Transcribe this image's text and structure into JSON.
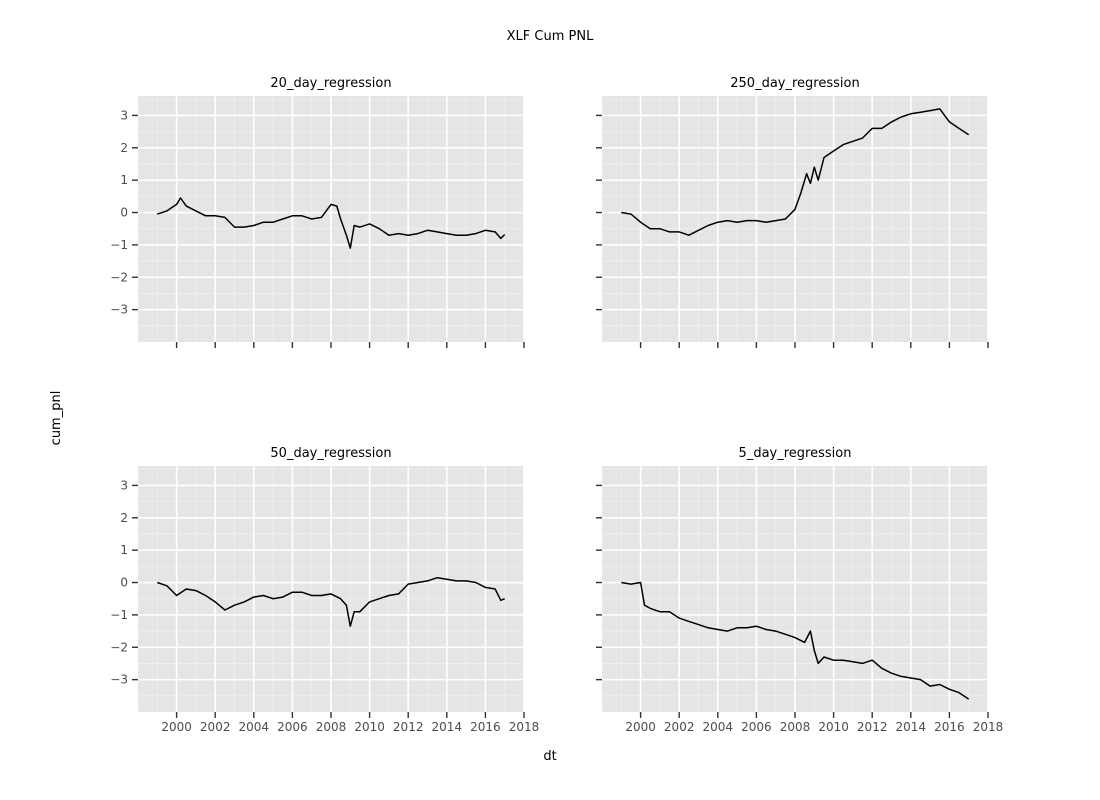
{
  "chart_data": {
    "type": "line",
    "title": "XLF Cum PNL",
    "xlabel": "dt",
    "ylabel": "cum_pnl",
    "xlim": [
      1998.0,
      2018.0
    ],
    "ylim": [
      -4.0,
      3.6
    ],
    "x_ticks": [
      2000,
      2002,
      2004,
      2006,
      2008,
      2010,
      2012,
      2014,
      2016,
      2018
    ],
    "y_ticks": [
      -3,
      -2,
      -1,
      0,
      1,
      2,
      3
    ],
    "grid": true,
    "line_color": "#000000",
    "panel_background": "#e5e5e5",
    "grid_color": "#ffffff",
    "panels": [
      {
        "label": "20_day_regression",
        "x": [
          1999.0,
          1999.5,
          2000.0,
          2000.2,
          2000.5,
          2001.0,
          2001.5,
          2002.0,
          2002.5,
          2003.0,
          2003.5,
          2004.0,
          2004.5,
          2005.0,
          2005.5,
          2006.0,
          2006.5,
          2007.0,
          2007.5,
          2008.0,
          2008.3,
          2008.5,
          2008.8,
          2009.0,
          2009.2,
          2009.5,
          2010.0,
          2010.5,
          2011.0,
          2011.5,
          2012.0,
          2012.5,
          2013.0,
          2013.5,
          2014.0,
          2014.5,
          2015.0,
          2015.5,
          2016.0,
          2016.5,
          2016.8,
          2017.0
        ],
        "y": [
          -0.05,
          0.05,
          0.25,
          0.45,
          0.2,
          0.05,
          -0.1,
          -0.1,
          -0.15,
          -0.45,
          -0.45,
          -0.4,
          -0.3,
          -0.3,
          -0.2,
          -0.1,
          -0.1,
          -0.2,
          -0.15,
          0.25,
          0.2,
          -0.2,
          -0.7,
          -1.1,
          -0.4,
          -0.45,
          -0.35,
          -0.5,
          -0.7,
          -0.65,
          -0.7,
          -0.65,
          -0.55,
          -0.6,
          -0.65,
          -0.7,
          -0.7,
          -0.65,
          -0.55,
          -0.6,
          -0.8,
          -0.68
        ]
      },
      {
        "label": "250_day_regression",
        "x": [
          1999.0,
          1999.5,
          2000.0,
          2000.5,
          2001.0,
          2001.5,
          2002.0,
          2002.5,
          2003.0,
          2003.5,
          2004.0,
          2004.5,
          2005.0,
          2005.5,
          2006.0,
          2006.5,
          2007.0,
          2007.5,
          2008.0,
          2008.3,
          2008.6,
          2008.8,
          2009.0,
          2009.2,
          2009.5,
          2010.0,
          2010.5,
          2011.0,
          2011.5,
          2012.0,
          2012.5,
          2013.0,
          2013.5,
          2014.0,
          2014.5,
          2015.0,
          2015.5,
          2016.0,
          2016.5,
          2017.0
        ],
        "y": [
          0.0,
          -0.05,
          -0.3,
          -0.5,
          -0.5,
          -0.6,
          -0.6,
          -0.7,
          -0.55,
          -0.4,
          -0.3,
          -0.25,
          -0.3,
          -0.25,
          -0.25,
          -0.3,
          -0.25,
          -0.2,
          0.1,
          0.6,
          1.2,
          0.9,
          1.4,
          1.0,
          1.7,
          1.9,
          2.1,
          2.2,
          2.3,
          2.6,
          2.6,
          2.8,
          2.95,
          3.05,
          3.1,
          3.15,
          3.2,
          2.8,
          2.6,
          2.4
        ]
      },
      {
        "label": "50_day_regression",
        "x": [
          1999.0,
          1999.5,
          2000.0,
          2000.5,
          2001.0,
          2001.5,
          2002.0,
          2002.5,
          2003.0,
          2003.5,
          2004.0,
          2004.5,
          2005.0,
          2005.5,
          2006.0,
          2006.5,
          2007.0,
          2007.5,
          2008.0,
          2008.5,
          2008.8,
          2009.0,
          2009.2,
          2009.5,
          2010.0,
          2010.5,
          2011.0,
          2011.5,
          2012.0,
          2012.5,
          2013.0,
          2013.5,
          2014.0,
          2014.5,
          2015.0,
          2015.5,
          2016.0,
          2016.5,
          2016.8,
          2017.0
        ],
        "y": [
          0.0,
          -0.1,
          -0.4,
          -0.2,
          -0.25,
          -0.4,
          -0.6,
          -0.85,
          -0.7,
          -0.6,
          -0.45,
          -0.4,
          -0.5,
          -0.45,
          -0.3,
          -0.3,
          -0.4,
          -0.4,
          -0.35,
          -0.5,
          -0.7,
          -1.35,
          -0.9,
          -0.9,
          -0.6,
          -0.5,
          -0.4,
          -0.35,
          -0.05,
          0.0,
          0.05,
          0.15,
          0.1,
          0.05,
          0.05,
          0.0,
          -0.15,
          -0.2,
          -0.55,
          -0.5
        ]
      },
      {
        "label": "5_day_regression",
        "x": [
          1999.0,
          1999.5,
          2000.0,
          2000.2,
          2000.5,
          2001.0,
          2001.5,
          2002.0,
          2002.5,
          2003.0,
          2003.5,
          2004.0,
          2004.5,
          2005.0,
          2005.5,
          2006.0,
          2006.5,
          2007.0,
          2007.5,
          2008.0,
          2008.5,
          2008.8,
          2009.0,
          2009.2,
          2009.5,
          2010.0,
          2010.5,
          2011.0,
          2011.5,
          2012.0,
          2012.5,
          2013.0,
          2013.5,
          2014.0,
          2014.5,
          2015.0,
          2015.5,
          2016.0,
          2016.5,
          2017.0
        ],
        "y": [
          0.0,
          -0.05,
          0.0,
          -0.7,
          -0.8,
          -0.9,
          -0.9,
          -1.1,
          -1.2,
          -1.3,
          -1.4,
          -1.45,
          -1.5,
          -1.4,
          -1.4,
          -1.35,
          -1.45,
          -1.5,
          -1.6,
          -1.7,
          -1.85,
          -1.5,
          -2.1,
          -2.5,
          -2.3,
          -2.4,
          -2.4,
          -2.45,
          -2.5,
          -2.4,
          -2.65,
          -2.8,
          -2.9,
          -2.95,
          -3.0,
          -3.2,
          -3.15,
          -3.3,
          -3.4,
          -3.6
        ]
      }
    ]
  }
}
